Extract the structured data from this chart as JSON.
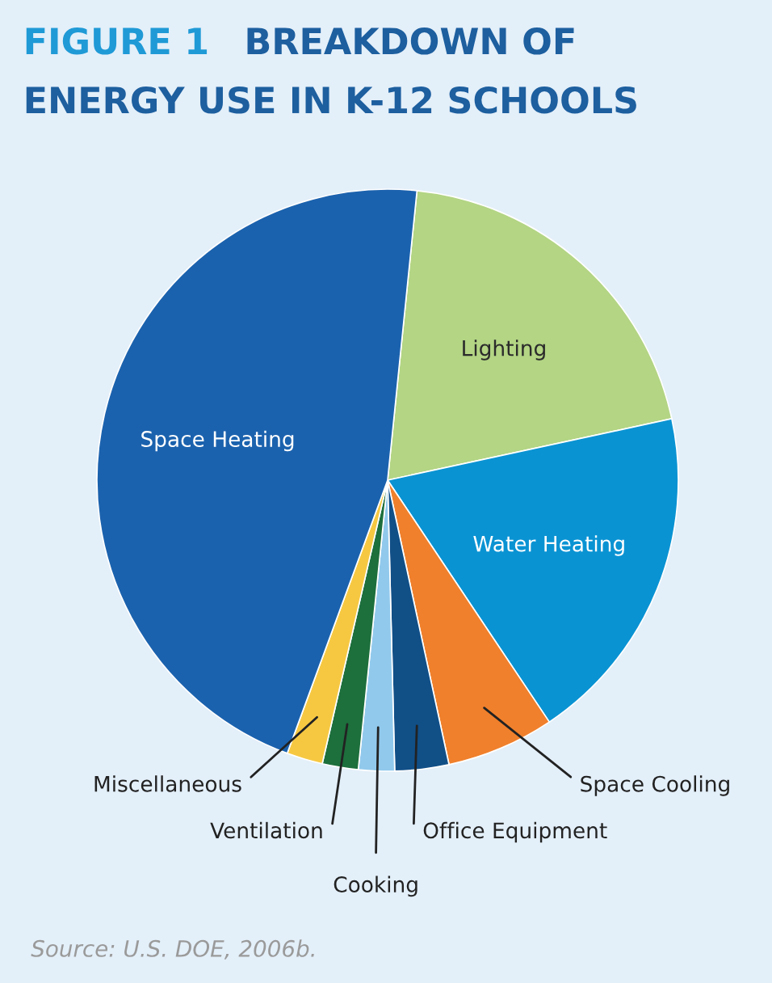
{
  "chart_data": {
    "type": "pie",
    "title": "FIGURE 1",
    "subtitle": "BREAKDOWN OF ENERGY USE IN K-12 SCHOOLS",
    "categories": [
      "Lighting",
      "Water Heating",
      "Space Cooling",
      "Office Equipment",
      "Cooking",
      "Ventilation",
      "Miscellaneous",
      "Space Heating"
    ],
    "values": [
      20,
      19,
      6,
      3,
      2,
      2,
      2,
      46
    ],
    "colors": [
      "#b3d584",
      "#0a93d3",
      "#f0802c",
      "#114f87",
      "#91c9ec",
      "#1d6f3c",
      "#f6c842",
      "#1b62ae"
    ],
    "annotations": [
      "Source: U.S. DOE, 2006b."
    ]
  }
}
